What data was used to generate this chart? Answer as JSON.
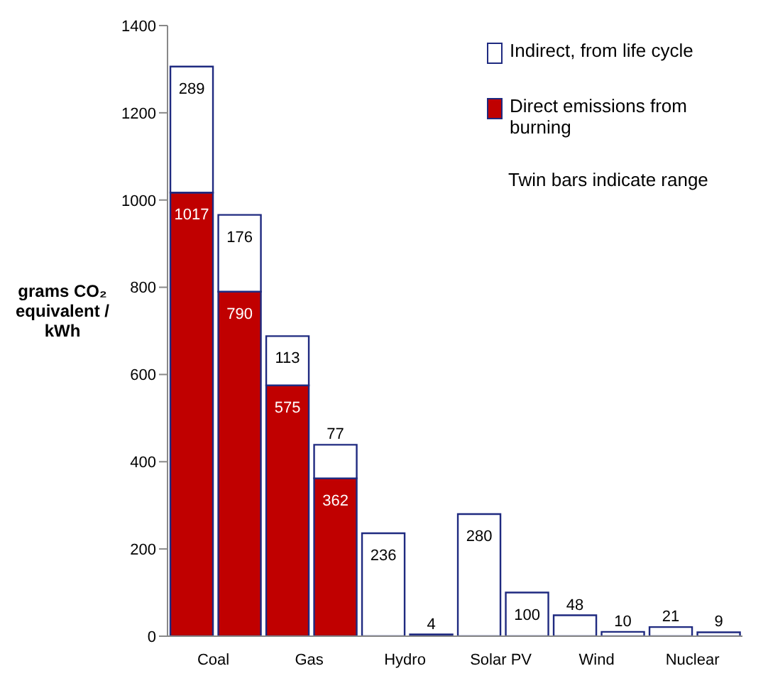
{
  "chart_data": {
    "type": "bar",
    "stacked": true,
    "ylabel": "grams CO₂ equivalent / kWh",
    "categories": [
      "Coal",
      null,
      "Gas",
      null,
      "Hydro",
      null,
      "Solar PV",
      null,
      "Wind",
      null,
      "Nuclear",
      null
    ],
    "series": [
      {
        "name": "Direct emissions from burning",
        "color": "#c00000",
        "values": [
          1017,
          790,
          575,
          362,
          null,
          null,
          null,
          null,
          null,
          null,
          null,
          null
        ]
      },
      {
        "name": "Indirect, from life cycle",
        "color": "#ffffff",
        "values": [
          289,
          176,
          113,
          77,
          236,
          4,
          280,
          100,
          48,
          10,
          21,
          9
        ]
      }
    ],
    "ylim": [
      0,
      1400
    ],
    "yticks": [
      0,
      200,
      400,
      600,
      800,
      1000,
      1200,
      1400
    ],
    "legend": "top right",
    "data_labels": true,
    "annotations": [
      "Twin bars indicate range"
    ]
  }
}
